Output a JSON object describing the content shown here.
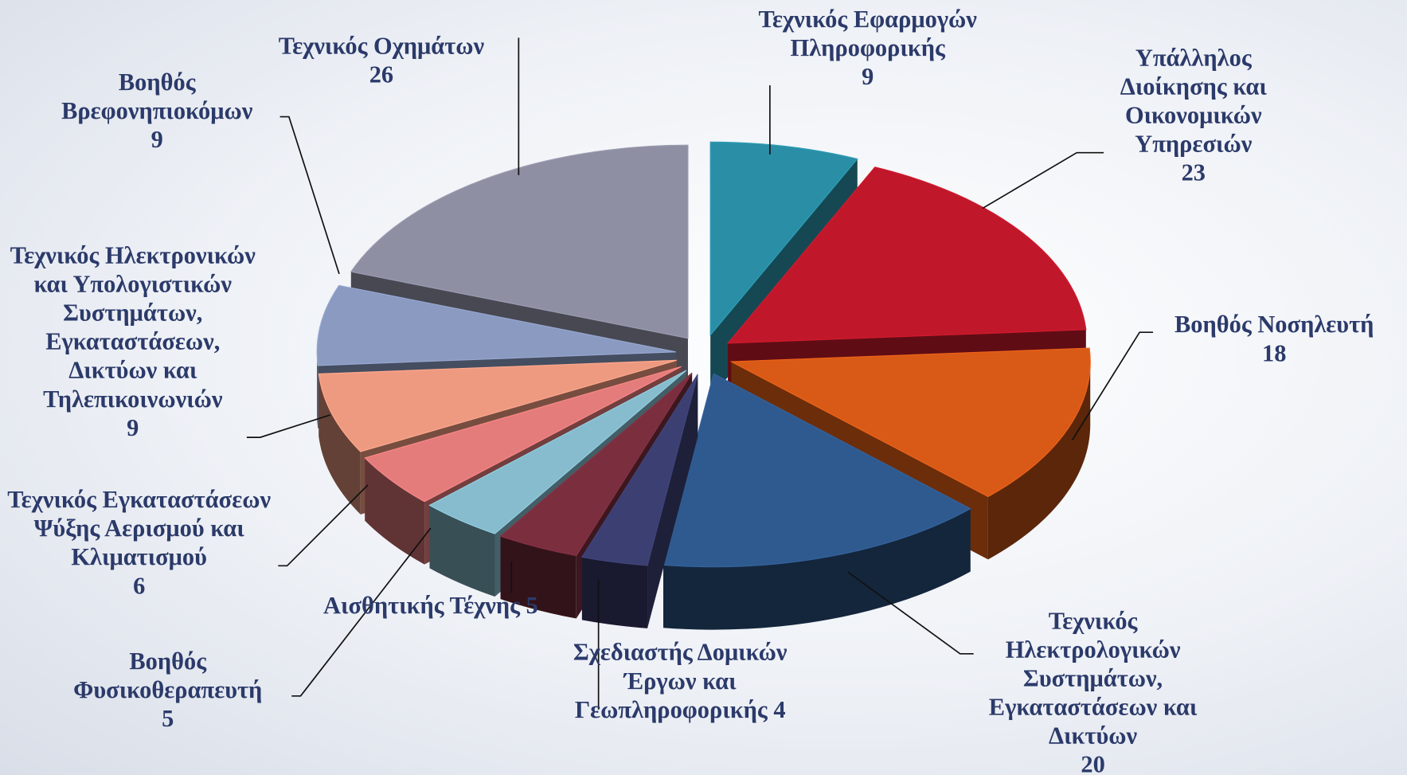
{
  "chart_data": {
    "type": "pie3d",
    "categories": [
      "Τεχνικός Εφαρμογών Πληροφορικής",
      "Υπάλληλος Διοίκησης και Οικονομικών Υπηρεσιών",
      "Βοηθός Νοσηλευτή",
      "Τεχνικός Ηλεκτρολογικών Συστημάτων, Εγκαταστάσεων και Δικτύων",
      "Σχεδιαστής Δομικών Έργων και Γεωπληροφορικής",
      "Αισθητικής Τέχνης",
      "Βοηθός Φυσικοθεραπευτή",
      "Τεχνικός Εγκαταστάσεων Ψύξης Αερισμού και Κλιματισμού",
      "Τεχνικός Ηλεκτρονικών και Υπολογιστικών Συστημάτων, Εγκαταστάσεων, Δικτύων και Τηλεπικοινωνιών",
      "Βοηθός Βρεφονηπιοκόμων",
      "Τεχνικός Οχημάτων"
    ],
    "values": [
      9,
      23,
      18,
      20,
      4,
      5,
      5,
      6,
      9,
      9,
      26
    ],
    "colors": [
      "#2a8fa6",
      "#c0182a",
      "#d85a16",
      "#2f5a8f",
      "#3b3f72",
      "#7a2e3e",
      "#86bccd",
      "#e47c7c",
      "#ee9a80",
      "#8a9ac0",
      "#8e8fa3"
    ]
  }
}
